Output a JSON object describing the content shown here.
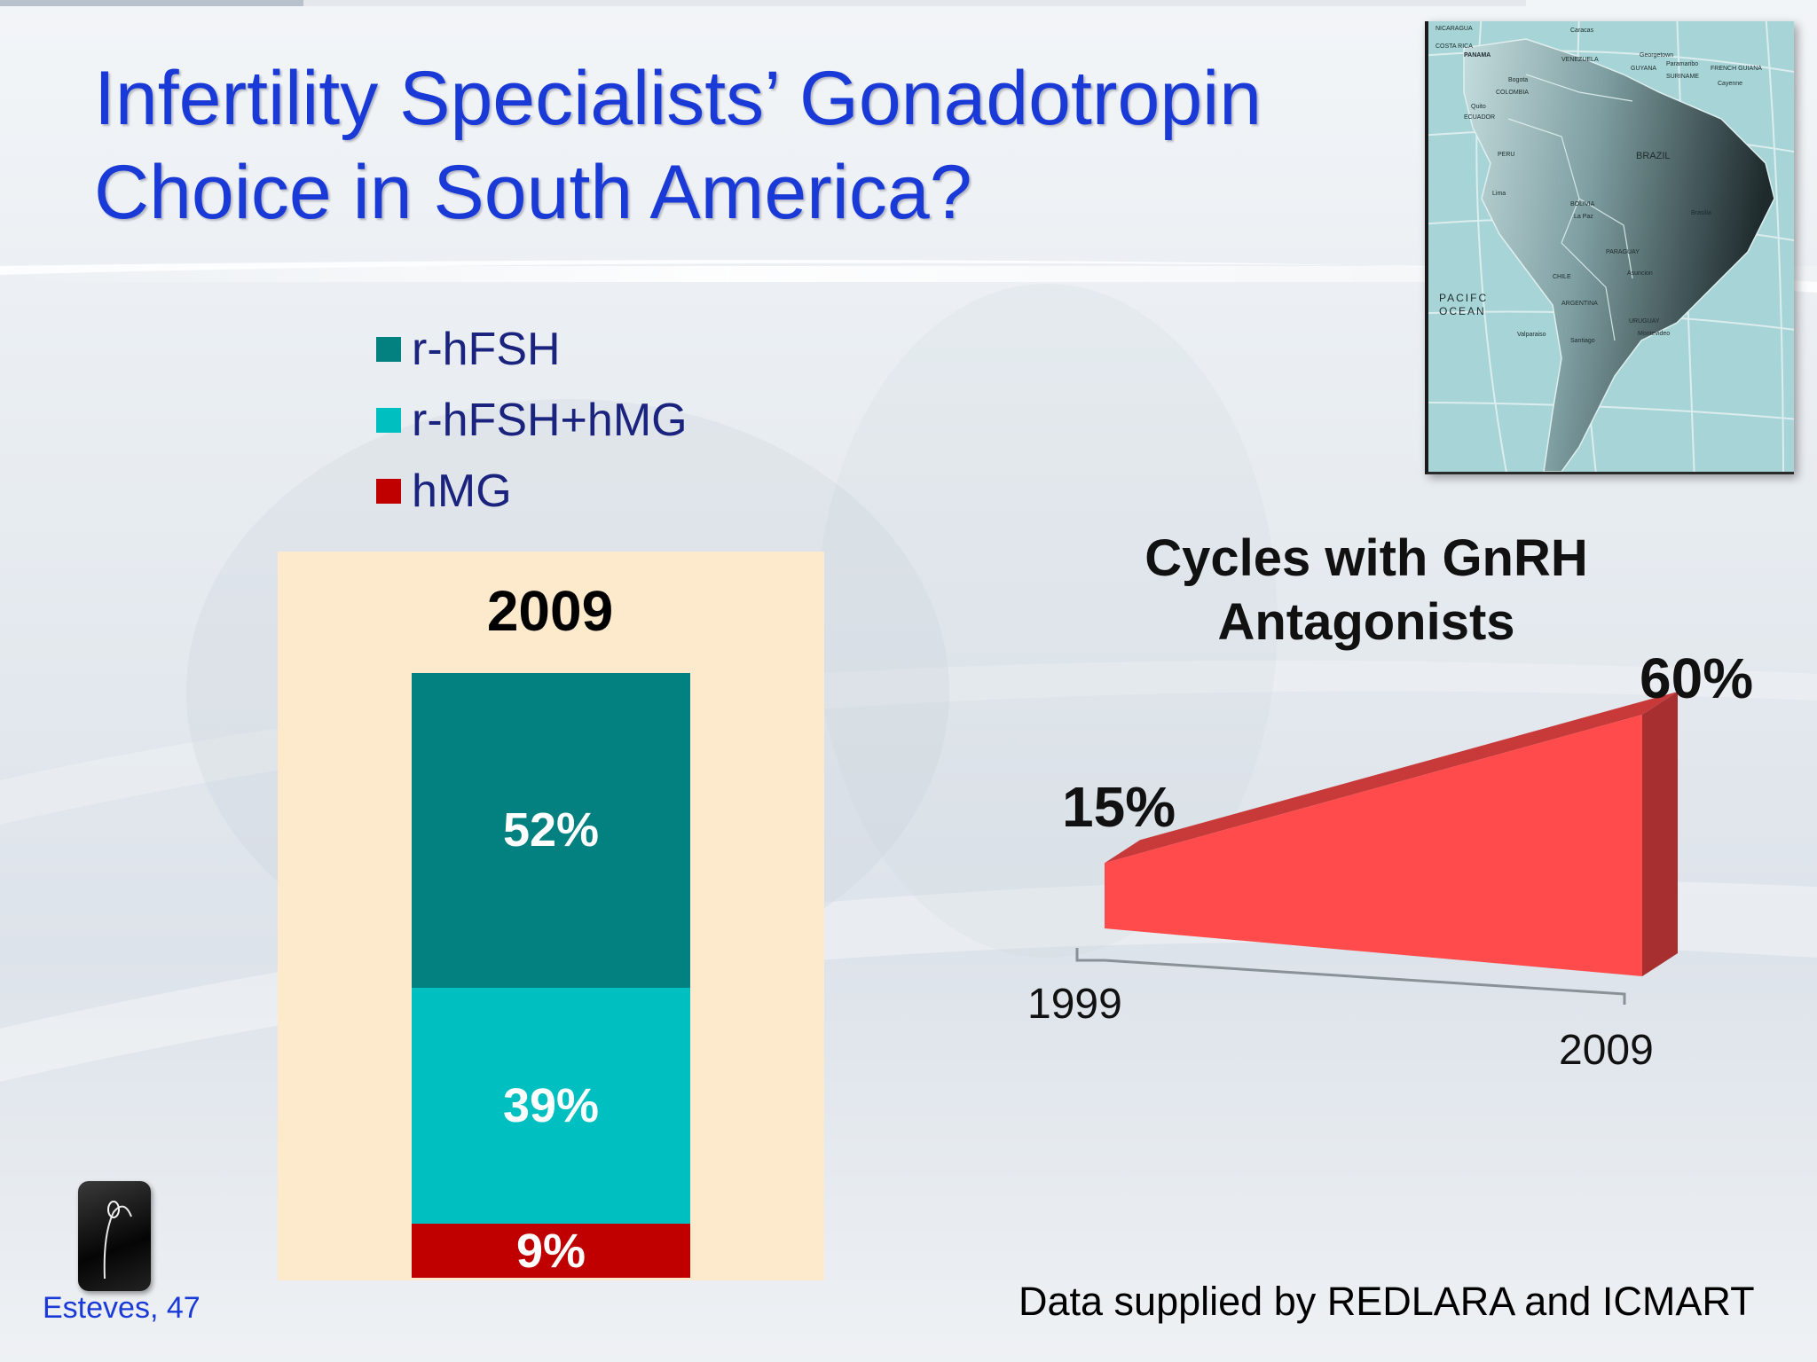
{
  "slide": {
    "title_line1": "Infertility Specialists’ Gonadotropin",
    "title_line2": "Choice in South America?",
    "source": "Data supplied by REDLARA and ICMART",
    "logo_caption": "Esteves, 47"
  },
  "map": {
    "labels": [
      "NICARAGUA",
      "COSTA RICA",
      "PANAMA",
      "Caracas",
      "VENEZUELA",
      "Georgetown",
      "Paramaribo",
      "GUYANA",
      "SURINAME",
      "FRENCH GUIANA",
      "Cayenne",
      "Bogota",
      "COLOMBIA",
      "Quito",
      "ECUADOR",
      "PERU",
      "BRAZIL",
      "Lima",
      "BOLIVIA",
      "La Paz",
      "Brasilia",
      "PARAGUAY",
      "Asuncion",
      "CHILE",
      "ARGENTINA",
      "Valparaiso",
      "Santiago",
      "URUGUAY",
      "Montevideo"
    ],
    "ocean_line1": "PACIFC",
    "ocean_line2": "OCEAN"
  },
  "chart_data": [
    {
      "type": "bar",
      "subtype": "stacked-100",
      "categories": [
        "2009"
      ],
      "series": [
        {
          "name": "r-hFSH",
          "values": [
            52
          ],
          "label": "52%",
          "color": "#038080"
        },
        {
          "name": "r-hFSH+hMG",
          "values": [
            39
          ],
          "label": "39%",
          "color": "#00bfc0"
        },
        {
          "name": "hMG",
          "values": [
            9
          ],
          "label": "9%",
          "color": "#c00000"
        }
      ],
      "legend": "top-left",
      "ylim": [
        0,
        100
      ],
      "panel_color": "#fde9cc"
    },
    {
      "type": "area",
      "style": "3d-wedge",
      "title_line1": "Cycles with GnRH",
      "title_line2": "Antagonists",
      "x": [
        "1999",
        "2009"
      ],
      "values": [
        15,
        60
      ],
      "labels": [
        "15%",
        "60%"
      ],
      "ylim": [
        0,
        60
      ],
      "color": "#ff4b4b"
    }
  ]
}
